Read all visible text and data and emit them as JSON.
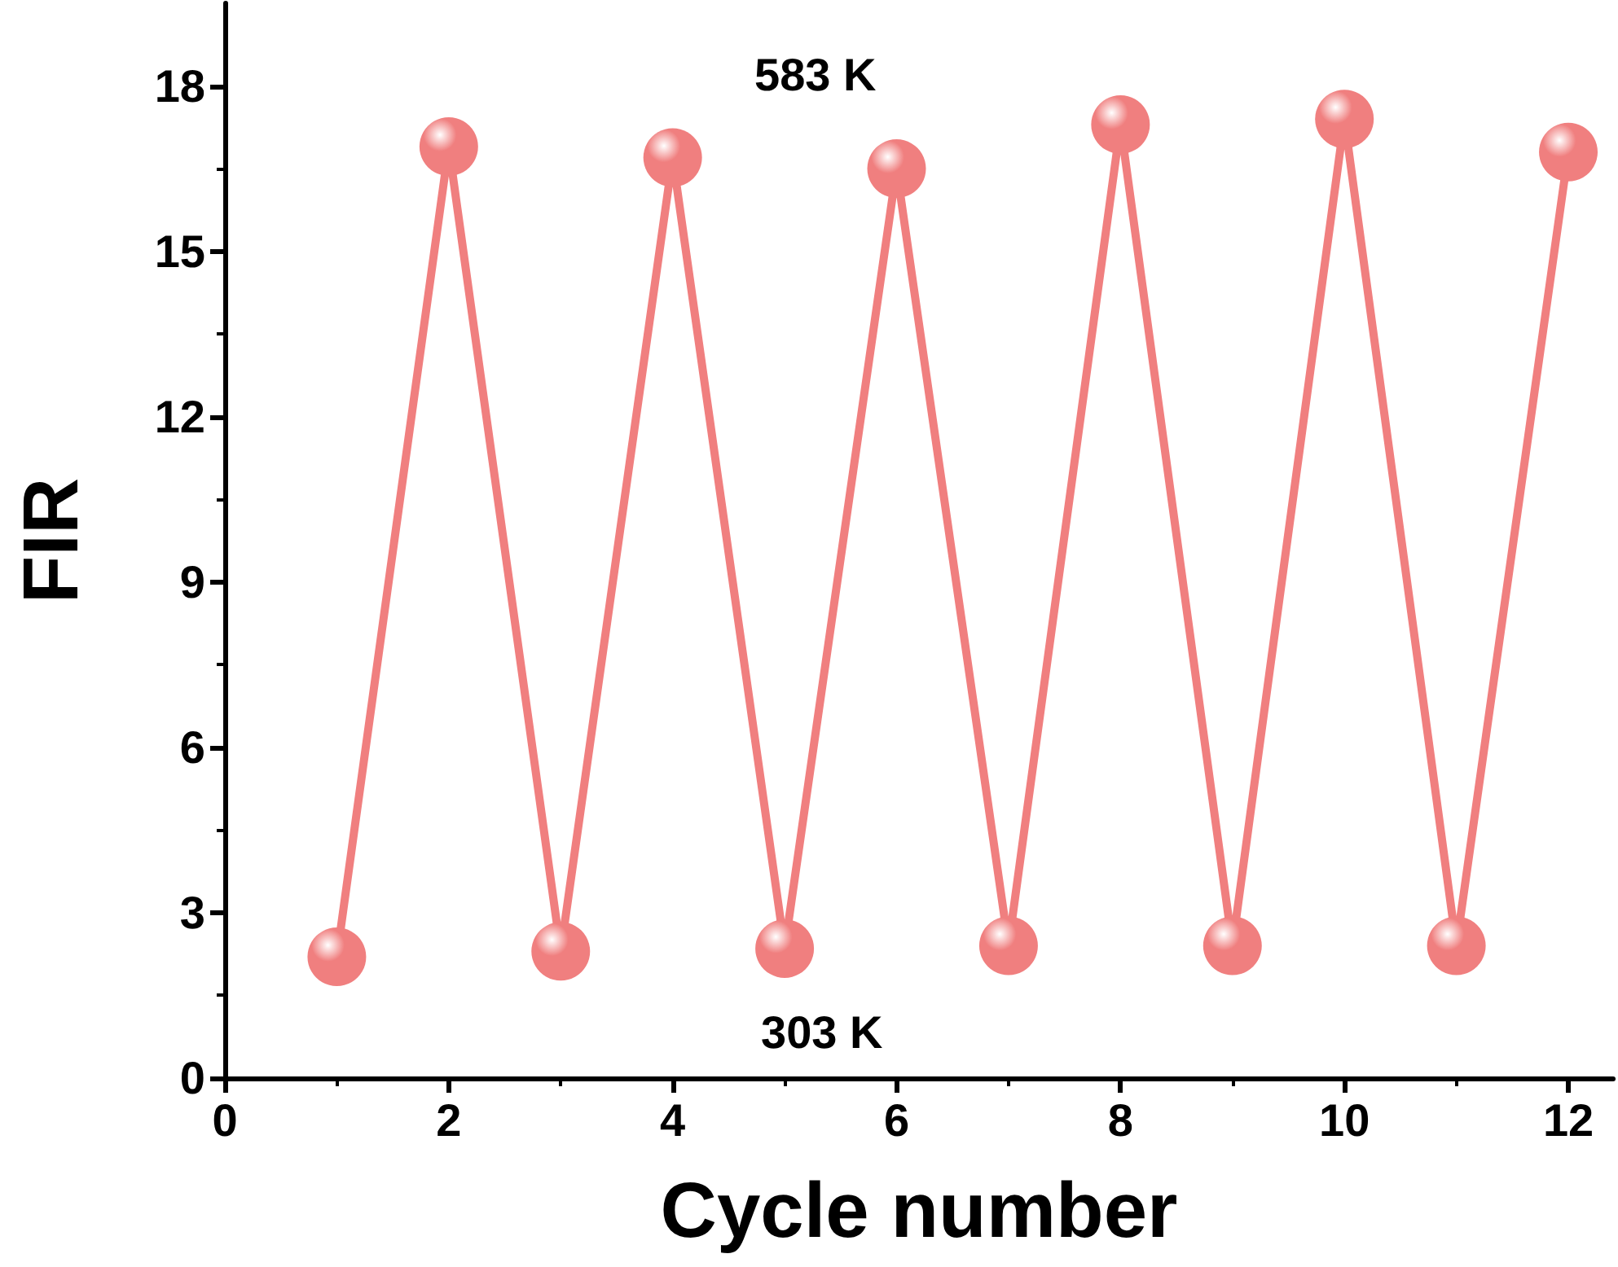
{
  "chart_data": {
    "type": "line",
    "xlabel": "Cycle number",
    "ylabel": "FIR",
    "x": [
      1,
      2,
      3,
      4,
      5,
      6,
      7,
      8,
      9,
      10,
      11,
      12
    ],
    "series": [
      {
        "color": "#f07f7f",
        "values": [
          2.2,
          16.9,
          2.3,
          16.7,
          2.35,
          16.5,
          2.4,
          17.3,
          2.4,
          17.4,
          2.4,
          16.8
        ]
      }
    ],
    "xlim": [
      0,
      12.4
    ],
    "xticks": [
      0,
      2,
      4,
      6,
      8,
      10,
      12
    ],
    "ylim": [
      0,
      19.5
    ],
    "yticks": [
      0,
      3,
      6,
      9,
      12,
      15,
      18
    ],
    "marker": "circle",
    "line_style": "solid",
    "grid": false,
    "annotations": [
      "583 K",
      "303 K"
    ]
  }
}
